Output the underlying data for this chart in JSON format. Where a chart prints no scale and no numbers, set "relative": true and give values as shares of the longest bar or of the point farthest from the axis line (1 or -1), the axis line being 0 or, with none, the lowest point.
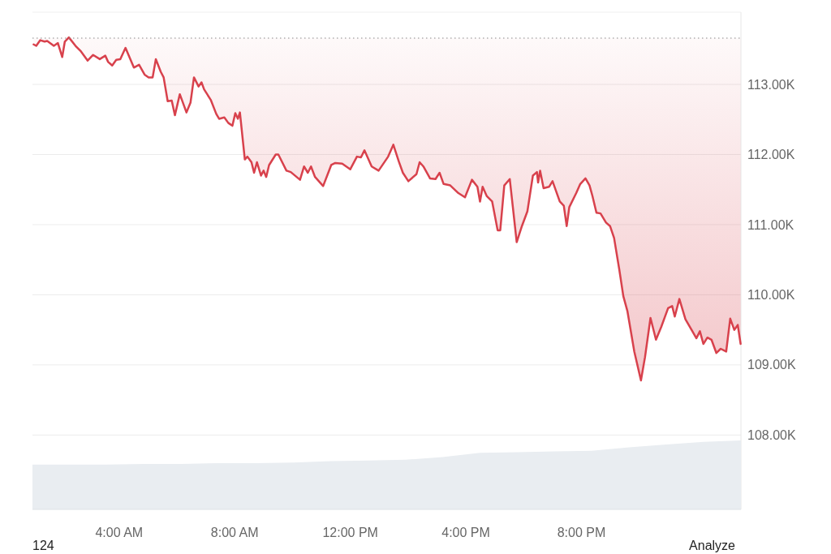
{
  "chart_data": [
    {
      "type": "line",
      "series": [
        {
          "color": "#d8414c",
          "x": [
            1.04,
            1.13,
            1.27,
            1.42,
            1.51,
            1.74,
            1.88,
            2.03,
            2.12,
            2.26,
            2.49,
            2.68,
            2.91,
            3.1,
            3.33,
            3.52,
            3.62,
            3.76,
            3.9,
            4.04,
            4.22,
            4.51,
            4.69,
            4.88,
            5.02,
            5.16,
            5.27,
            5.44,
            5.54,
            5.68,
            5.82,
            5.93,
            6.1,
            6.33,
            6.47,
            6.59,
            6.75,
            6.85,
            6.94,
            7.17,
            7.36,
            7.46,
            7.64,
            7.78,
            7.92,
            8.02,
            8.11,
            8.18,
            8.35,
            8.44,
            8.58,
            8.67,
            8.77,
            8.91,
            9.0,
            9.09,
            9.19,
            9.42,
            9.51,
            9.79,
            9.94,
            10.26,
            10.4,
            10.53,
            10.64,
            10.78,
            11.06,
            11.2,
            11.34,
            11.48,
            11.72,
            12.0,
            12.23,
            12.37,
            12.49,
            12.74,
            12.98,
            13.31,
            13.49,
            13.68,
            13.82,
            14.01,
            14.29,
            14.4,
            14.53,
            14.76,
            14.95,
            15.09,
            15.23,
            15.46,
            15.74,
            15.97,
            16.21,
            16.4,
            16.49,
            16.58,
            16.72,
            16.91,
            17.1,
            17.19,
            17.33,
            17.52,
            17.76,
            17.94,
            18.13,
            18.32,
            18.46,
            18.5,
            18.57,
            18.69,
            18.88,
            19.0,
            19.25,
            19.39,
            19.49,
            19.58,
            19.82,
            19.96,
            20.14,
            20.28,
            20.38,
            20.52,
            20.66,
            20.85,
            20.99,
            21.13,
            21.31,
            21.45,
            21.59,
            21.83,
            22.06,
            22.2,
            22.39,
            22.58,
            22.76,
            23.0,
            23.14,
            23.23,
            23.39,
            23.6,
            23.84,
            23.98,
            24.1,
            24.22,
            24.36,
            24.5,
            24.67,
            24.82,
            25.01,
            25.15,
            25.29,
            25.41,
            25.51
          ],
          "values": [
            113570,
            113550,
            113630,
            113610,
            113620,
            113550,
            113590,
            113390,
            113610,
            113670,
            113550,
            113470,
            113340,
            113420,
            113360,
            113410,
            113320,
            113270,
            113350,
            113360,
            113520,
            113240,
            113280,
            113140,
            113100,
            113100,
            113360,
            113180,
            113100,
            112760,
            112770,
            112560,
            112860,
            112600,
            112740,
            113100,
            112970,
            113030,
            112930,
            112780,
            112580,
            112510,
            112530,
            112450,
            112410,
            112590,
            112510,
            112600,
            111930,
            111970,
            111890,
            111740,
            111890,
            111700,
            111770,
            111680,
            111850,
            112000,
            112000,
            111770,
            111750,
            111640,
            111830,
            111740,
            111830,
            111680,
            111550,
            111700,
            111850,
            111880,
            111870,
            111790,
            111970,
            111960,
            112060,
            111830,
            111770,
            111970,
            112140,
            111900,
            111740,
            111620,
            111720,
            111890,
            111830,
            111660,
            111650,
            111740,
            111580,
            111560,
            111450,
            111390,
            111640,
            111540,
            111330,
            111540,
            111410,
            111330,
            110920,
            110920,
            111560,
            111650,
            110750,
            110980,
            111190,
            111700,
            111750,
            111600,
            111770,
            111520,
            111540,
            111620,
            111330,
            111270,
            110980,
            111250,
            111450,
            111580,
            111660,
            111560,
            111410,
            111170,
            111160,
            111030,
            110980,
            110810,
            110360,
            109980,
            109770,
            109190,
            108780,
            109110,
            109670,
            109360,
            109540,
            109810,
            109840,
            109690,
            109940,
            109650,
            109480,
            109380,
            109480,
            109300,
            109390,
            109360,
            109170,
            109230,
            109190,
            109660,
            109500,
            109570,
            109300
          ]
        }
      ],
      "xlim": [
        1.0,
        25.52
      ],
      "xticks": [
        {
          "value": 4,
          "label": "4:00 AM"
        },
        {
          "value": 8,
          "label": "8:00 AM"
        },
        {
          "value": 12,
          "label": "12:00 PM"
        },
        {
          "value": 16,
          "label": "4:00 PM"
        },
        {
          "value": 20,
          "label": "8:00 PM"
        },
        {
          "value": 24,
          "label": null
        }
      ],
      "ylim": [
        106940,
        114030
      ],
      "yticks": [
        {
          "value": 108000,
          "label": "108.00K"
        },
        {
          "value": 109000,
          "label": "109.00K"
        },
        {
          "value": 110000,
          "label": "110.00K"
        },
        {
          "value": 111000,
          "label": "111.00K"
        },
        {
          "value": 112000,
          "label": "112.00K"
        },
        {
          "value": 113000,
          "label": "113.00K"
        }
      ],
      "grid": "y",
      "ref_lines": [
        {
          "axis": "y",
          "value": 113660,
          "color": "#888888",
          "line_style": "dotted"
        }
      ],
      "annotations": [
        "124",
        "Analyze"
      ]
    },
    {
      "type": "area",
      "relative": true,
      "categories": [
        null,
        null,
        null,
        null,
        null,
        null,
        null,
        null,
        null,
        null,
        null,
        null,
        null,
        null,
        null,
        null,
        null,
        null,
        null,
        null
      ],
      "series": [
        {
          "color": "#e9edf1",
          "values": [
            0.65,
            0.65,
            0.65,
            0.66,
            0.66,
            0.67,
            0.67,
            0.68,
            0.7,
            0.71,
            0.72,
            0.76,
            0.82,
            0.83,
            0.84,
            0.85,
            0.9,
            0.94,
            0.98,
            1
          ]
        }
      ]
    }
  ]
}
